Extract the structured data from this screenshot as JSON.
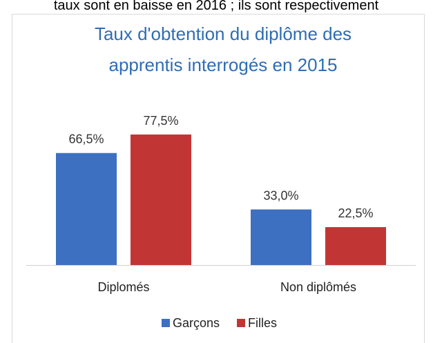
{
  "page_text": "taux sont en baisse en 2016 ; ils sont respectivement",
  "chart_data": {
    "type": "bar",
    "title": [
      "Taux d'obtention du diplôme des",
      "apprentis interrogés en 2015"
    ],
    "categories": [
      "Diplomés",
      "Non diplômés"
    ],
    "series": [
      {
        "name": "Garçons",
        "color": "#3d70c0",
        "values": [
          66.5,
          33.0
        ],
        "value_labels": [
          "66,5%",
          "33,0%"
        ]
      },
      {
        "name": "Filles",
        "color": "#c23535",
        "values": [
          77.5,
          22.5
        ],
        "value_labels": [
          "77,5%",
          "22,5%"
        ]
      }
    ],
    "ylim": [
      0,
      100
    ],
    "grid": false,
    "legend": "bottom"
  }
}
